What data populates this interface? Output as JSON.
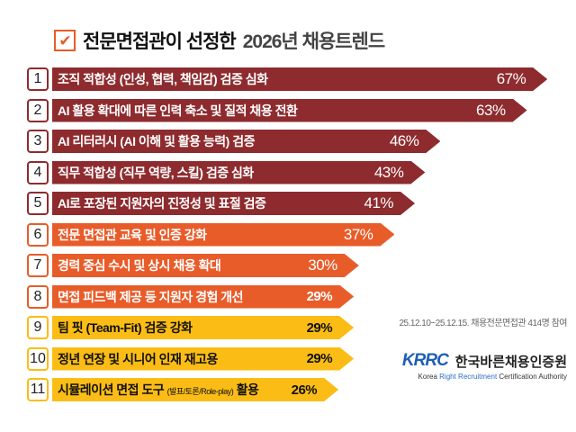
{
  "chart_data": {
    "type": "bar",
    "orientation": "horizontal",
    "title_prefix": "전문면접관이 선정한",
    "title_main": "2026년 채용트렌드",
    "unit": "%",
    "items": [
      {
        "rank": "1",
        "label": "조직 적합성 (인성, 협력, 책임감) 검증 심화",
        "value": 67,
        "color": "#8e2b2e"
      },
      {
        "rank": "2",
        "label": "AI 활용 확대에 따른 인력 축소 및 질적 채용 전환",
        "value": 63,
        "color": "#8e2b2e"
      },
      {
        "rank": "3",
        "label": "AI 리터러시 (AI 이해 및 활용 능력) 검증",
        "value": 46,
        "color": "#8e2b2e"
      },
      {
        "rank": "4",
        "label": "직무 적합성 (직무 역량, 스킬) 검증 심화",
        "value": 43,
        "color": "#8e2b2e"
      },
      {
        "rank": "5",
        "label": "AI로 포장된 지원자의 진정성 및 표절 검증",
        "value": 41,
        "color": "#8e2b2e"
      },
      {
        "rank": "6",
        "label": "전문 면접관 교육 및 인증 강화",
        "value": 37,
        "color": "#e85c2a"
      },
      {
        "rank": "7",
        "label": "경력 중심 수시 및 상시 채용 확대",
        "value": 30,
        "color": "#e85c2a"
      },
      {
        "rank": "8",
        "label": "면접 피드백 제공 등 지원자 경험 개선",
        "value": 29,
        "color": "#e85c2a"
      },
      {
        "rank": "9",
        "label": "팀 핏 (Team-Fit) 검증 강화",
        "value": 29,
        "color": "#fbbd15"
      },
      {
        "rank": "10",
        "label": "정년 연장 및 시니어 인재 재고용",
        "value": 29,
        "color": "#fbbd15"
      },
      {
        "rank": "11",
        "label": "시뮬레이션 면접 도구",
        "label_small": "(발표/토론/Role-play)",
        "label_suffix": "활용",
        "value": 26,
        "color": "#fbbd15"
      }
    ]
  },
  "note": "25.12.10~25.12.15. 채용전문면접관 414명 참여",
  "logo": {
    "abbr": "KRRC",
    "name": "한국바른채용인증원",
    "eng_1": "Korea",
    "eng_2": "Right Recruitment",
    "eng_3": "Certification Authority"
  }
}
